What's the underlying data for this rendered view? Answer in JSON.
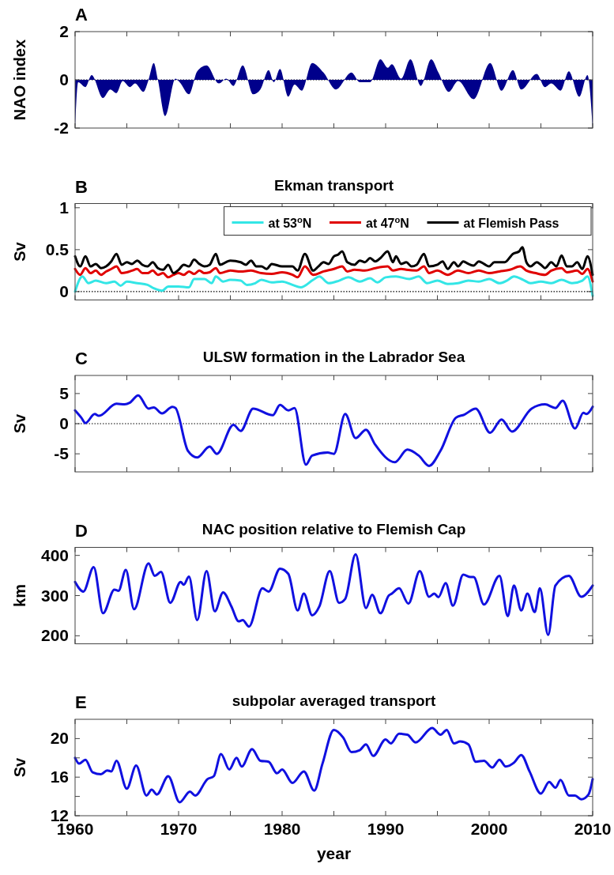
{
  "chart_data": [
    {
      "type": "area",
      "annotations": [
        "A"
      ],
      "ylabel": "NAO index",
      "xlim": [
        1960,
        2010
      ],
      "ylim": [
        -2,
        2
      ],
      "yticks": [
        -2,
        0,
        2
      ],
      "xticks": [
        1960,
        {
          "value": 1965,
          "label": null
        },
        1970,
        {
          "value": 1975,
          "label": null
        },
        1980,
        {
          "value": 1985,
          "label": null
        },
        1990,
        {
          "value": 1995,
          "label": null
        },
        2000,
        {
          "value": 2005,
          "label": null
        },
        2010
      ],
      "tick_labels": "y",
      "ref_lines": [
        {
          "axis": "y",
          "value": 0,
          "line_style": "dotted"
        }
      ],
      "series": [
        {
          "color": "#00008b",
          "x": [
            1960,
            1960.3,
            1961,
            1961.6,
            1962.7,
            1963.4,
            1964,
            1964.6,
            1965.3,
            1965.8,
            1966.6,
            1967.1,
            1967.6,
            1968,
            1968.7,
            1969.7,
            1970.1,
            1971,
            1971.8,
            1972.7,
            1973.9,
            1974.6,
            1975.3,
            1976.2,
            1977.2,
            1977.9,
            1978.7,
            1979.2,
            1979.8,
            1980.6,
            1981.2,
            1981.9,
            1982.9,
            1984,
            1985.2,
            1986.7,
            1987.5,
            1988.5,
            1989.5,
            1990.2,
            1990.6,
            1991.5,
            1992.4,
            1993.4,
            1994.4,
            1995.1,
            1996.1,
            1997,
            1998.5,
            2000.1,
            2001.2,
            2002.3,
            2003.1,
            2004.6,
            2005.4,
            2006,
            2006.9,
            2007.7,
            2008.7,
            2009.5,
            2010
          ],
          "values": [
            -2,
            -0.1,
            -0.3,
            0.2,
            -0.75,
            -0.4,
            -0.55,
            -0.05,
            -0.3,
            -0.15,
            -0.5,
            0,
            0.7,
            0,
            -1.5,
            0.05,
            -0.1,
            -0.6,
            0.35,
            0.6,
            -0.15,
            0.05,
            -0.25,
            0.6,
            -0.6,
            -0.4,
            0.4,
            -0.1,
            0.45,
            -0.7,
            -0.2,
            -0.45,
            0.7,
            0.3,
            -0.4,
            0.3,
            -0.1,
            -0.1,
            0.85,
            0.5,
            0.65,
            0.05,
            0.85,
            -0.25,
            0.85,
            0.3,
            -0.5,
            -0.05,
            -0.8,
            0.7,
            -0.45,
            0.4,
            -0.4,
            0.25,
            -0.3,
            -0.15,
            -0.45,
            0.35,
            -0.7,
            0.2,
            -2
          ]
        }
      ]
    },
    {
      "type": "line",
      "title": "Ekman transport",
      "annotations": [
        "B"
      ],
      "ylabel": "Sv",
      "xlim": [
        1960,
        2010
      ],
      "ylim": [
        -0.1,
        1.05
      ],
      "yticks": [
        0,
        0.5,
        1
      ],
      "xticks": [
        1960,
        {
          "value": 1965,
          "label": null
        },
        1970,
        {
          "value": 1975,
          "label": null
        },
        1980,
        {
          "value": 1985,
          "label": null
        },
        1990,
        {
          "value": 1995,
          "label": null
        },
        2000,
        {
          "value": 2005,
          "label": null
        },
        2010
      ],
      "tick_labels": "y",
      "legend": "top right",
      "ref_lines": [
        {
          "axis": "y",
          "value": 0,
          "line_style": "dotted"
        }
      ],
      "series": [
        {
          "name": "at 53$^{o}$N",
          "color": "#33e6e6",
          "x": [
            1960,
            1960.7,
            1961.3,
            1962,
            1963,
            1963.8,
            1964.4,
            1965,
            1966,
            1967,
            1967.6,
            1968.4,
            1969,
            1970,
            1971,
            1971.5,
            1972.5,
            1973.2,
            1973.6,
            1974.3,
            1975,
            1976,
            1976.6,
            1977.4,
            1978,
            1979,
            1980,
            1981,
            1981.8,
            1983,
            1983.6,
            1984.5,
            1985.5,
            1986.4,
            1987.5,
            1988.5,
            1989.2,
            1990,
            1991,
            1992.3,
            1993.2,
            1994,
            1995,
            1996,
            1997,
            1998,
            1999,
            2000,
            2001,
            2001.7,
            2002.4,
            2003.3,
            2004,
            2005,
            2006,
            2007,
            2008,
            2009,
            2009.5,
            2010
          ],
          "values": [
            0,
            0.18,
            0.1,
            0.13,
            0.1,
            0.12,
            0.07,
            0.12,
            0.1,
            0.08,
            0.04,
            0.01,
            0.06,
            0.06,
            0.05,
            0.15,
            0.15,
            0.1,
            0.18,
            0.12,
            0.14,
            0.13,
            0.08,
            0.1,
            0.14,
            0.11,
            0.12,
            0.08,
            0.05,
            0.14,
            0.18,
            0.1,
            0.13,
            0.17,
            0.12,
            0.16,
            0.11,
            0.17,
            0.18,
            0.15,
            0.18,
            0.1,
            0.13,
            0.09,
            0.1,
            0.13,
            0.12,
            0.15,
            0.1,
            0.13,
            0.18,
            0.14,
            0.1,
            0.12,
            0.1,
            0.14,
            0.1,
            0.13,
            0.18,
            -0.05
          ]
        },
        {
          "name": "at 47$^{o}$N",
          "color": "#e00000",
          "x": [
            1960,
            1960.5,
            1961,
            1961.5,
            1962,
            1962.5,
            1963,
            1963.5,
            1964,
            1964.5,
            1965,
            1965.5,
            1966,
            1966.5,
            1967,
            1967.5,
            1968,
            1968.5,
            1969,
            1969.5,
            1970,
            1970.5,
            1971,
            1971.5,
            1972,
            1972.5,
            1973,
            1973.6,
            1974,
            1975,
            1976,
            1977,
            1978,
            1979,
            1980,
            1981,
            1981.5,
            1982.2,
            1983,
            1984,
            1985,
            1985.8,
            1986.3,
            1987,
            1988,
            1989,
            1990.2,
            1990.7,
            1991.5,
            1992,
            1993,
            1993.7,
            1994.2,
            1995,
            1996,
            1997,
            1998,
            1999,
            2000,
            2001,
            2002,
            2003,
            2003.6,
            2004.5,
            2005.4,
            2006,
            2007,
            2007.5,
            2008.5,
            2009,
            2009.5,
            2010
          ],
          "values": [
            0.27,
            0.2,
            0.28,
            0.22,
            0.25,
            0.2,
            0.24,
            0.27,
            0.3,
            0.22,
            0.23,
            0.25,
            0.27,
            0.22,
            0.22,
            0.25,
            0.2,
            0.22,
            0.17,
            0.2,
            0.22,
            0.2,
            0.24,
            0.21,
            0.25,
            0.22,
            0.23,
            0.28,
            0.22,
            0.25,
            0.24,
            0.25,
            0.22,
            0.21,
            0.23,
            0.2,
            0.17,
            0.3,
            0.2,
            0.24,
            0.27,
            0.3,
            0.24,
            0.26,
            0.25,
            0.28,
            0.3,
            0.25,
            0.27,
            0.26,
            0.25,
            0.3,
            0.22,
            0.25,
            0.2,
            0.25,
            0.22,
            0.25,
            0.22,
            0.24,
            0.26,
            0.3,
            0.25,
            0.22,
            0.2,
            0.25,
            0.28,
            0.23,
            0.25,
            0.21,
            0.27,
            0.12
          ]
        },
        {
          "name": "at Flemish Pass",
          "color": "#000000",
          "x": [
            1960,
            1960.5,
            1961,
            1961.5,
            1962,
            1962.5,
            1963,
            1963.5,
            1964,
            1964.5,
            1965,
            1965.5,
            1966,
            1966.5,
            1967,
            1967.5,
            1968,
            1968.5,
            1969,
            1969.5,
            1970,
            1970.5,
            1971,
            1971.5,
            1972,
            1972.5,
            1973,
            1973.6,
            1974,
            1975,
            1976,
            1976.5,
            1977,
            1977.5,
            1978,
            1978.5,
            1979,
            1980,
            1981,
            1981.5,
            1982.2,
            1983,
            1983.5,
            1984,
            1984.5,
            1985,
            1985.4,
            1985.8,
            1986.3,
            1987,
            1987.5,
            1988,
            1988.5,
            1989,
            1989.5,
            1990.2,
            1990.7,
            1991,
            1991.5,
            1992,
            1992.5,
            1993,
            1993.7,
            1994.2,
            1995,
            1995.5,
            1996,
            1996.6,
            1997,
            1997.5,
            1998,
            1998.5,
            1999,
            1999.5,
            2000,
            2000.5,
            2001.5,
            2002.3,
            2002.9,
            2003.2,
            2003.6,
            2004,
            2004.6,
            2005,
            2005.4,
            2006,
            2006.5,
            2007,
            2007.5,
            2008,
            2008.5,
            2009,
            2009.5,
            2010
          ],
          "values": [
            0.42,
            0.3,
            0.42,
            0.3,
            0.33,
            0.28,
            0.3,
            0.36,
            0.45,
            0.32,
            0.35,
            0.33,
            0.37,
            0.32,
            0.3,
            0.35,
            0.28,
            0.26,
            0.32,
            0.22,
            0.26,
            0.32,
            0.3,
            0.38,
            0.33,
            0.3,
            0.32,
            0.45,
            0.32,
            0.37,
            0.35,
            0.32,
            0.37,
            0.3,
            0.3,
            0.27,
            0.33,
            0.3,
            0.3,
            0.25,
            0.45,
            0.25,
            0.3,
            0.35,
            0.33,
            0.42,
            0.44,
            0.48,
            0.35,
            0.32,
            0.37,
            0.35,
            0.4,
            0.36,
            0.4,
            0.48,
            0.35,
            0.42,
            0.33,
            0.35,
            0.3,
            0.32,
            0.45,
            0.3,
            0.32,
            0.36,
            0.27,
            0.35,
            0.3,
            0.36,
            0.33,
            0.31,
            0.36,
            0.33,
            0.3,
            0.35,
            0.35,
            0.45,
            0.48,
            0.53,
            0.35,
            0.3,
            0.35,
            0.32,
            0.28,
            0.35,
            0.3,
            0.43,
            0.3,
            0.3,
            0.35,
            0.27,
            0.42,
            0.2
          ]
        }
      ]
    },
    {
      "type": "line",
      "title": "ULSW formation in the Labrador Sea",
      "annotations": [
        "C"
      ],
      "ylabel": "Sv",
      "xlim": [
        1960,
        2010
      ],
      "ylim": [
        -8,
        8
      ],
      "yticks": [
        -5,
        0,
        5
      ],
      "xticks": [
        1960,
        {
          "value": 1965,
          "label": null
        },
        1970,
        {
          "value": 1975,
          "label": null
        },
        1980,
        {
          "value": 1985,
          "label": null
        },
        1990,
        {
          "value": 1995,
          "label": null
        },
        2000,
        {
          "value": 2005,
          "label": null
        },
        2010
      ],
      "tick_labels": "y",
      "ref_lines": [
        {
          "axis": "y",
          "value": 0,
          "line_style": "dotted"
        }
      ],
      "series": [
        {
          "color": "#1010e0",
          "x": [
            1960,
            1960.6,
            1961,
            1961.9,
            1962.3,
            1964,
            1964.8,
            1965.3,
            1966.1,
            1967.1,
            1967.6,
            1968.4,
            1969.4,
            1969.7,
            1970.9,
            1971.8,
            1973,
            1973.7,
            1975.3,
            1976,
            1977.2,
            1979.1,
            1979.8,
            1980.6,
            1981.2,
            1982.3,
            1982.9,
            1984.4,
            1985,
            1986.1,
            1987.1,
            1988.1,
            1989,
            1990.9,
            1992.1,
            1993.2,
            1994.2,
            1995.3,
            1996.8,
            1997.6,
            1998.7,
            2000.1,
            2001.2,
            2002.2,
            2004.1,
            2005.4,
            2006.4,
            2007.1,
            2008.3,
            2009.1,
            2009.4,
            2010
          ],
          "values": [
            2.2,
            1,
            0.1,
            1.6,
            1.3,
            3.3,
            3.2,
            3.5,
            4.7,
            2.5,
            2.7,
            1.7,
            2.8,
            2.6,
            -4.5,
            -5.6,
            -3.8,
            -5,
            -0.2,
            -1.2,
            2.5,
            1.4,
            3.1,
            2.2,
            2.6,
            -6.8,
            -5.3,
            -4.8,
            -5,
            1.6,
            -2.4,
            -1,
            -3.5,
            -6.4,
            -4.3,
            -5.3,
            -7,
            -4.5,
            1,
            1.5,
            2.5,
            -1.5,
            0.7,
            -1.3,
            2.5,
            3.2,
            2.6,
            3.8,
            -0.8,
            1.8,
            1.6,
            2.8
          ]
        }
      ]
    },
    {
      "type": "line",
      "title": "NAC position relative to Flemish Cap",
      "annotations": [
        "D"
      ],
      "ylabel": "km",
      "xlim": [
        1960,
        2010
      ],
      "ylim": [
        180,
        420
      ],
      "yticks": [
        200,
        300,
        400
      ],
      "xticks": [
        1960,
        {
          "value": 1965,
          "label": null
        },
        1970,
        {
          "value": 1975,
          "label": null
        },
        1980,
        {
          "value": 1985,
          "label": null
        },
        1990,
        {
          "value": 1995,
          "label": null
        },
        2000,
        {
          "value": 2005,
          "label": null
        },
        2010
      ],
      "tick_labels": "y",
      "series": [
        {
          "color": "#1010e0",
          "x": [
            1960,
            1960.8,
            1961.8,
            1962.7,
            1963.8,
            1964.2,
            1964.9,
            1965.7,
            1967.1,
            1967.7,
            1968.3,
            1969.2,
            1970.2,
            1970.5,
            1971,
            1971.8,
            1972.7,
            1973.5,
            1974.3,
            1975.1,
            1975.8,
            1976.2,
            1976.8,
            1978.1,
            1978.7,
            1979.8,
            1980.6,
            1981.5,
            1982.1,
            1982.9,
            1983.6,
            1984.6,
            1985.5,
            1986.1,
            1987.1,
            1988.1,
            1988.7,
            1989.5,
            1990.3,
            1990.6,
            1991.3,
            1992.2,
            1993.3,
            1994.2,
            1994.7,
            1995.1,
            1995.8,
            1996.5,
            1997.5,
            1998.2,
            1998.5,
            1999.5,
            2001,
            2001.8,
            2002.4,
            2003.1,
            2003.7,
            2004.4,
            2004.9,
            2005.7,
            2006.4,
            2007.7,
            2008.9,
            2010
          ],
          "values": [
            334,
            310,
            371,
            256,
            315,
            312,
            364,
            266,
            380,
            349,
            359,
            282,
            334,
            327,
            347,
            239,
            361,
            261,
            308,
            273,
            236,
            239,
            223,
            318,
            310,
            367,
            354,
            263,
            305,
            251,
            273,
            361,
            282,
            292,
            403,
            269,
            302,
            256,
            300,
            305,
            318,
            280,
            361,
            297,
            305,
            296,
            331,
            275,
            352,
            346,
            346,
            278,
            349,
            249,
            325,
            263,
            305,
            259,
            318,
            202,
            325,
            349,
            297,
            325
          ]
        }
      ]
    },
    {
      "type": "line",
      "title": "subpolar averaged transport",
      "annotations": [
        "E"
      ],
      "ylabel": "Sv",
      "xlabel": "year",
      "xlim": [
        1960,
        2010
      ],
      "ylim": [
        12,
        22
      ],
      "yticks": [
        12,
        {
          "value": 14,
          "label": null
        },
        16,
        {
          "value": 18,
          "label": null
        },
        20
      ],
      "xticks": [
        1960,
        {
          "value": 1965,
          "label": null
        },
        1970,
        {
          "value": 1975,
          "label": null
        },
        1980,
        {
          "value": 1985,
          "label": null
        },
        1990,
        {
          "value": 1995,
          "label": null
        },
        2000,
        {
          "value": 2005,
          "label": null
        },
        2010
      ],
      "series": [
        {
          "color": "#1010e0",
          "x": [
            1960,
            1960.4,
            1961,
            1961.7,
            1962.5,
            1963.1,
            1963.5,
            1964,
            1965,
            1965.9,
            1966.9,
            1967.4,
            1967.9,
            1969,
            1970.1,
            1971.1,
            1971.6,
            1972.8,
            1973.4,
            1974.1,
            1974.9,
            1975.6,
            1976.1,
            1977.1,
            1977.9,
            1978.7,
            1979.5,
            1980,
            1981,
            1982.1,
            1983.1,
            1983.9,
            1985,
            1985.9,
            1986.7,
            1987.5,
            1988.1,
            1988.8,
            1990,
            1990.5,
            1991.3,
            1992.1,
            1992.9,
            1994.5,
            1995.3,
            1995.9,
            1996.6,
            1997.2,
            1998,
            1998.7,
            1999.5,
            2000.3,
            2001,
            2001.6,
            2002.4,
            2003.1,
            2003.9,
            2005,
            2005.8,
            2006.4,
            2006.9,
            2007.7,
            2008.3,
            2008.9,
            2009.6,
            2010
          ],
          "values": [
            18,
            17.4,
            17.8,
            16.5,
            16.3,
            16.7,
            16.6,
            17.7,
            14.8,
            17.2,
            14.1,
            14.7,
            14.2,
            16.1,
            13.4,
            14.5,
            14.1,
            15.8,
            16.1,
            18.4,
            16.8,
            18,
            17.1,
            18.9,
            17.7,
            17.6,
            16.4,
            16.8,
            15.4,
            16.6,
            14.6,
            17.4,
            20.9,
            20.1,
            18.6,
            18.8,
            19.4,
            18.2,
            19.9,
            19.5,
            20.5,
            20.4,
            19.6,
            21.1,
            20.4,
            20.9,
            19.5,
            19.7,
            19.4,
            17.6,
            17.7,
            17,
            17.8,
            17.1,
            17.5,
            18.3,
            16.6,
            14.3,
            15.5,
            14.9,
            15.7,
            14.1,
            14.1,
            13.7,
            14.2,
            15.8
          ]
        }
      ]
    }
  ]
}
